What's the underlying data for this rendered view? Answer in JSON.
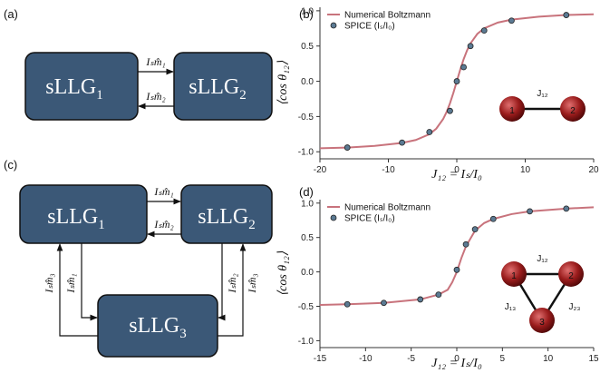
{
  "panel_labels": [
    "(a)",
    "(b)",
    "(c)",
    "(d)"
  ],
  "diagram_a": {
    "nodes": [
      {
        "label": "sLLG",
        "index": "1"
      },
      {
        "label": "sLLG",
        "index": "2"
      }
    ],
    "edges": [
      "Iₛm̂₁",
      "Iₛm̂₂"
    ]
  },
  "diagram_c": {
    "nodes": [
      {
        "label": "sLLG",
        "index": "1"
      },
      {
        "label": "sLLG",
        "index": "2"
      },
      {
        "label": "sLLG",
        "index": "3"
      }
    ],
    "edges": [
      "Iₛm̂₁",
      "Iₛm̂₂",
      "Iₛm̂₃",
      "Iₛm̂₁",
      "Iₛm̂₂",
      "Iₛm̂₃"
    ]
  },
  "chart_data": [
    {
      "type": "line",
      "x_label": "J₁₂ = Iₛ/I₀",
      "y_label": "⟨cos θ₁₂⟩",
      "legend": "upper left",
      "xlim": [
        -20,
        20
      ],
      "xticks": [
        -20,
        -10,
        0,
        10,
        20
      ],
      "ylim": [
        -1.1,
        1.05
      ],
      "yticks": [
        {
          "value": -1,
          "label": "-1.0"
        },
        {
          "value": -0.5,
          "label": "-0.5"
        },
        {
          "value": 0,
          "label": "0.0"
        },
        {
          "value": 0.5,
          "label": "0.5"
        },
        {
          "value": 1,
          "label": "1.0"
        }
      ],
      "series": [
        {
          "name": "Numerical Boltzmann",
          "color": "#c8737c",
          "mode": "line",
          "x": [
            -20,
            -16,
            -12,
            -8,
            -6,
            -4,
            -3,
            -2,
            -1.5,
            -1,
            -0.5,
            0,
            0.5,
            1,
            1.5,
            2,
            3,
            4,
            6,
            8,
            12,
            16,
            20
          ],
          "values": [
            -0.95,
            -0.94,
            -0.917,
            -0.875,
            -0.833,
            -0.751,
            -0.672,
            -0.537,
            -0.438,
            -0.313,
            -0.164,
            0,
            0.164,
            0.313,
            0.438,
            0.537,
            0.672,
            0.751,
            0.833,
            0.875,
            0.917,
            0.94,
            0.95
          ]
        },
        {
          "name": "SPICE (Iₛ/I₀)",
          "color": "#5b7a93",
          "mode": "scatter",
          "x": [
            -16,
            -8,
            -4,
            -1,
            0,
            1,
            2,
            4,
            8,
            16
          ],
          "values": [
            -0.94,
            -0.87,
            -0.72,
            -0.42,
            0.0,
            0.2,
            0.5,
            0.72,
            0.86,
            0.94
          ]
        }
      ],
      "inset": {
        "nodes": [
          "1",
          "2"
        ],
        "couplings": [
          "J₁₂"
        ]
      }
    },
    {
      "type": "line",
      "x_label": "J₁₂ = Iₛ/I₀",
      "y_label": "⟨cos θ₁₂⟩",
      "legend": "upper left",
      "xlim": [
        -15,
        15
      ],
      "xticks": [
        -15,
        -10,
        -5,
        0,
        5,
        10,
        15
      ],
      "ylim": [
        -1.1,
        1.05
      ],
      "yticks": [
        {
          "value": -1,
          "label": "-1.0"
        },
        {
          "value": -0.5,
          "label": "-0.5"
        },
        {
          "value": 0,
          "label": "0.0"
        },
        {
          "value": 0.5,
          "label": "0.5"
        },
        {
          "value": 1,
          "label": "1.0"
        }
      ],
      "series": [
        {
          "name": "Numerical Boltzmann",
          "color": "#c8737c",
          "mode": "line",
          "x": [
            -15,
            -12,
            -8,
            -4,
            -2,
            -1,
            -0.5,
            0,
            0.5,
            1,
            2,
            3,
            4,
            6,
            8,
            12,
            15
          ],
          "values": [
            -0.48,
            -0.47,
            -0.45,
            -0.4,
            -0.33,
            -0.26,
            -0.15,
            0,
            0.2,
            0.37,
            0.6,
            0.71,
            0.77,
            0.84,
            0.88,
            0.92,
            0.94
          ]
        },
        {
          "name": "SPICE (Iₛ/I₀)",
          "color": "#5b7a93",
          "mode": "scatter",
          "x": [
            -12,
            -8,
            -4,
            -2,
            0,
            1,
            2,
            4,
            8,
            12
          ],
          "values": [
            -0.47,
            -0.45,
            -0.4,
            -0.33,
            0.03,
            0.4,
            0.62,
            0.77,
            0.88,
            0.92
          ]
        }
      ],
      "inset": {
        "nodes": [
          "1",
          "2",
          "3"
        ],
        "couplings": [
          "J₁₂",
          "J₁₃",
          "J₂₃"
        ]
      }
    }
  ]
}
